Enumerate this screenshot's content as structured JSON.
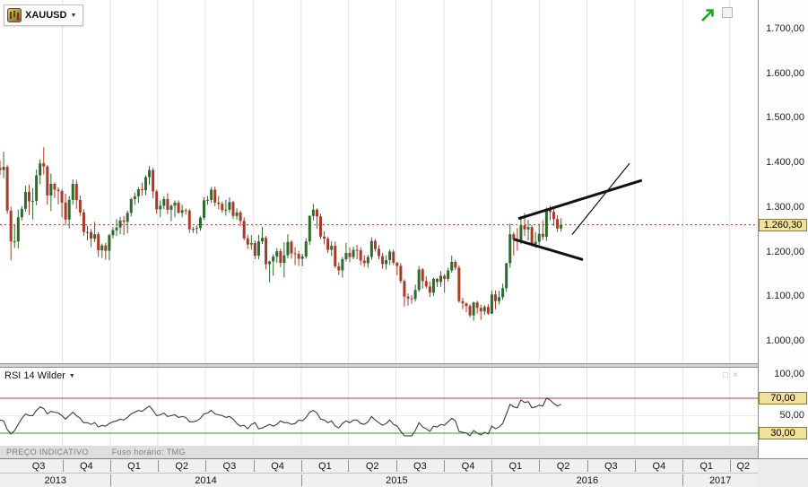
{
  "symbol": {
    "label": "XAUUSD",
    "caret": "▼"
  },
  "price_axis": {
    "labels": [
      {
        "text": "1.700,00",
        "value": 1700
      },
      {
        "text": "1.600,00",
        "value": 1600
      },
      {
        "text": "1.500,00",
        "value": 1500
      },
      {
        "text": "1.400,00",
        "value": 1400
      },
      {
        "text": "1.300,00",
        "value": 1300
      },
      {
        "text": "1.200,00",
        "value": 1200
      },
      {
        "text": "1.100,00",
        "value": 1100
      },
      {
        "text": "1.000,00",
        "value": 1000
      }
    ],
    "current": {
      "text": "1.260,30",
      "value": 1260.3
    }
  },
  "rsi_panel": {
    "title": "RSI 14 Wilder",
    "caret": "▼",
    "tools": [
      "□",
      "×"
    ],
    "axis_labels": [
      {
        "text": "100,00",
        "value": 100,
        "badge": false
      },
      {
        "text": "70,00",
        "value": 70,
        "badge": true
      },
      {
        "text": "50,00",
        "value": 50,
        "badge": false
      },
      {
        "text": "30,00",
        "value": 30,
        "badge": true
      }
    ]
  },
  "status_bar": {
    "left": "PREÇO INDICATIVO",
    "right": "Fuso horário: TMG"
  },
  "time_axis": {
    "quarter_ticks": [
      17.1,
      30.3,
      43.3,
      56.4,
      69.6,
      82.7,
      95.6,
      108.7,
      121.9,
      135,
      148,
      161.1,
      174.3,
      187.4,
      200.3
    ],
    "quarter_labels": [
      {
        "label": "Q3",
        "week": 10.6
      },
      {
        "label": "Q4",
        "week": 23.7
      },
      {
        "label": "Q1",
        "week": 36.8
      },
      {
        "label": "Q2",
        "week": 49.9
      },
      {
        "label": "Q3",
        "week": 63.0
      },
      {
        "label": "Q4",
        "week": 76.2
      },
      {
        "label": "Q1",
        "week": 89.2
      },
      {
        "label": "Q2",
        "week": 102.2
      },
      {
        "label": "Q3",
        "week": 115.3
      },
      {
        "label": "Q4",
        "week": 128.5
      },
      {
        "label": "Q1",
        "week": 141.5
      },
      {
        "label": "Q2",
        "week": 154.6
      },
      {
        "label": "Q3",
        "week": 167.7
      },
      {
        "label": "Q4",
        "week": 180.9
      },
      {
        "label": "Q1",
        "week": 193.9
      },
      {
        "label": "Q2",
        "week": 204.0
      }
    ],
    "year_ticks": [
      30.3,
      82.7,
      135,
      187.4
    ],
    "year_labels": [
      {
        "label": "2013",
        "week": 15.2
      },
      {
        "label": "2014",
        "week": 56.5
      },
      {
        "label": "2015",
        "week": 108.9
      },
      {
        "label": "2016",
        "week": 161.2
      },
      {
        "label": "2017",
        "week": 197.7
      }
    ]
  },
  "colors": {
    "bull": "#2d6a2d",
    "bear": "#aa3a28",
    "grid": "#e3e3e3",
    "price_line": "#cc3333",
    "rsi_line": "#3c3c3c",
    "overbought_line": "#cc3333",
    "oversold_line": "#2e9b2e",
    "rsi_mid_line": "#ececec",
    "badge_bg": "#f1e19c",
    "badge_border": "#8a7a35",
    "trendline": "#111111",
    "arrow_green": "#1fa41f"
  },
  "chart_data": {
    "type": "candlestick",
    "symbol": "XAUUSD",
    "timeframe": "weekly",
    "ohlc_format": [
      "open",
      "high",
      "low",
      "close"
    ],
    "price_axis_ticks": [
      1700,
      1600,
      1500,
      1400,
      1300,
      1200,
      1100,
      1000
    ],
    "current_price": 1260.3,
    "total_weeks": 208,
    "first_candle_week": 0,
    "candles": [
      [
        1388,
        1404,
        1372,
        1383
      ],
      [
        1383,
        1424,
        1365,
        1390
      ],
      [
        1390,
        1395,
        1285,
        1292
      ],
      [
        1292,
        1301,
        1180,
        1223
      ],
      [
        1223,
        1260,
        1208,
        1223
      ],
      [
        1223,
        1294,
        1207,
        1277
      ],
      [
        1277,
        1302,
        1270,
        1296
      ],
      [
        1296,
        1348,
        1290,
        1334
      ],
      [
        1334,
        1350,
        1282,
        1313
      ],
      [
        1313,
        1343,
        1272,
        1314
      ],
      [
        1314,
        1384,
        1304,
        1371
      ],
      [
        1371,
        1407,
        1351,
        1398
      ],
      [
        1398,
        1434,
        1373,
        1391
      ],
      [
        1391,
        1394,
        1305,
        1326
      ],
      [
        1326,
        1375,
        1291,
        1352
      ],
      [
        1352,
        1355,
        1320,
        1339
      ],
      [
        1339,
        1344,
        1306,
        1336
      ],
      [
        1336,
        1340,
        1277,
        1310
      ],
      [
        1310,
        1330,
        1259,
        1272
      ],
      [
        1272,
        1324,
        1252,
        1316
      ],
      [
        1316,
        1362,
        1305,
        1352
      ],
      [
        1352,
        1361,
        1296,
        1316
      ],
      [
        1316,
        1326,
        1280,
        1288
      ],
      [
        1288,
        1295,
        1236,
        1244
      ],
      [
        1244,
        1258,
        1225,
        1244
      ],
      [
        1244,
        1251,
        1210,
        1229
      ],
      [
        1229,
        1267,
        1221,
        1239
      ],
      [
        1239,
        1244,
        1188,
        1203
      ],
      [
        1203,
        1218,
        1186,
        1214
      ],
      [
        1214,
        1220,
        1182,
        1202
      ],
      [
        1202,
        1240,
        1181,
        1237
      ],
      [
        1237,
        1255,
        1230,
        1248
      ],
      [
        1248,
        1273,
        1235,
        1254
      ],
      [
        1254,
        1278,
        1239,
        1270
      ],
      [
        1270,
        1280,
        1237,
        1267
      ],
      [
        1267,
        1292,
        1241,
        1287
      ],
      [
        1287,
        1321,
        1279,
        1318
      ],
      [
        1318,
        1332,
        1305,
        1324
      ],
      [
        1324,
        1345,
        1309,
        1340
      ],
      [
        1340,
        1355,
        1326,
        1338
      ],
      [
        1338,
        1371,
        1327,
        1367
      ],
      [
        1367,
        1392,
        1350,
        1383
      ],
      [
        1383,
        1388,
        1320,
        1335
      ],
      [
        1335,
        1339,
        1285,
        1295
      ],
      [
        1295,
        1315,
        1277,
        1303
      ],
      [
        1303,
        1324,
        1295,
        1318
      ],
      [
        1318,
        1331,
        1284,
        1294
      ],
      [
        1294,
        1306,
        1268,
        1303
      ],
      [
        1303,
        1315,
        1277,
        1310
      ],
      [
        1310,
        1315,
        1285,
        1287
      ],
      [
        1287,
        1305,
        1277,
        1293
      ],
      [
        1293,
        1297,
        1283,
        1292
      ],
      [
        1292,
        1296,
        1242,
        1250
      ],
      [
        1250,
        1256,
        1242,
        1251
      ],
      [
        1251,
        1259,
        1240,
        1253
      ],
      [
        1253,
        1280,
        1247,
        1276
      ],
      [
        1276,
        1322,
        1271,
        1315
      ],
      [
        1315,
        1325,
        1305,
        1316
      ],
      [
        1316,
        1345,
        1309,
        1339
      ],
      [
        1339,
        1346,
        1302,
        1310
      ],
      [
        1310,
        1325,
        1295,
        1307
      ],
      [
        1307,
        1312,
        1287,
        1293
      ],
      [
        1293,
        1316,
        1281,
        1294
      ],
      [
        1294,
        1322,
        1287,
        1311
      ],
      [
        1311,
        1314,
        1273,
        1280
      ],
      [
        1280,
        1297,
        1272,
        1288
      ],
      [
        1288,
        1292,
        1257,
        1269
      ],
      [
        1269,
        1277,
        1225,
        1230
      ],
      [
        1230,
        1238,
        1206,
        1216
      ],
      [
        1216,
        1237,
        1204,
        1219
      ],
      [
        1219,
        1225,
        1183,
        1191
      ],
      [
        1191,
        1238,
        1183,
        1223
      ],
      [
        1223,
        1256,
        1217,
        1231
      ],
      [
        1231,
        1235,
        1160,
        1172
      ],
      [
        1172,
        1180,
        1131,
        1178
      ],
      [
        1178,
        1194,
        1146,
        1189
      ],
      [
        1189,
        1208,
        1175,
        1201
      ],
      [
        1201,
        1207,
        1165,
        1175
      ],
      [
        1175,
        1221,
        1142,
        1192
      ],
      [
        1192,
        1239,
        1185,
        1222
      ],
      [
        1222,
        1226,
        1184,
        1196
      ],
      [
        1196,
        1210,
        1170,
        1195
      ],
      [
        1195,
        1202,
        1168,
        1184
      ],
      [
        1184,
        1195,
        1167,
        1189
      ],
      [
        1189,
        1230,
        1184,
        1223
      ],
      [
        1223,
        1282,
        1215,
        1280
      ],
      [
        1280,
        1307,
        1270,
        1294
      ],
      [
        1294,
        1297,
        1251,
        1279
      ],
      [
        1279,
        1285,
        1228,
        1234
      ],
      [
        1234,
        1246,
        1216,
        1229
      ],
      [
        1229,
        1234,
        1197,
        1204
      ],
      [
        1204,
        1223,
        1190,
        1213
      ],
      [
        1213,
        1223,
        1163,
        1167
      ],
      [
        1167,
        1176,
        1147,
        1158
      ],
      [
        1158,
        1188,
        1142,
        1183
      ],
      [
        1183,
        1220,
        1178,
        1197
      ],
      [
        1197,
        1210,
        1176,
        1188
      ],
      [
        1188,
        1211,
        1183,
        1204
      ],
      [
        1204,
        1215,
        1183,
        1203
      ],
      [
        1203,
        1210,
        1170,
        1180
      ],
      [
        1180,
        1192,
        1166,
        1174
      ],
      [
        1174,
        1193,
        1164,
        1188
      ],
      [
        1188,
        1232,
        1182,
        1224
      ],
      [
        1224,
        1228,
        1200,
        1206
      ],
      [
        1206,
        1215,
        1183,
        1190
      ],
      [
        1190,
        1197,
        1162,
        1172
      ],
      [
        1172,
        1192,
        1160,
        1181
      ],
      [
        1181,
        1205,
        1170,
        1200
      ],
      [
        1200,
        1204,
        1170,
        1175
      ],
      [
        1175,
        1177,
        1147,
        1168
      ],
      [
        1168,
        1174,
        1129,
        1134
      ],
      [
        1134,
        1138,
        1077,
        1099
      ],
      [
        1099,
        1106,
        1079,
        1095
      ],
      [
        1095,
        1103,
        1083,
        1094
      ],
      [
        1094,
        1126,
        1088,
        1114
      ],
      [
        1114,
        1168,
        1110,
        1160
      ],
      [
        1160,
        1163,
        1117,
        1134
      ],
      [
        1134,
        1145,
        1117,
        1122
      ],
      [
        1122,
        1133,
        1098,
        1108
      ],
      [
        1108,
        1142,
        1100,
        1139
      ],
      [
        1139,
        1141,
        1121,
        1132
      ],
      [
        1132,
        1156,
        1121,
        1146
      ],
      [
        1146,
        1150,
        1108,
        1139
      ],
      [
        1139,
        1164,
        1133,
        1158
      ],
      [
        1158,
        1191,
        1153,
        1177
      ],
      [
        1177,
        1182,
        1159,
        1164
      ],
      [
        1164,
        1169,
        1085,
        1089
      ],
      [
        1089,
        1097,
        1071,
        1084
      ],
      [
        1084,
        1086,
        1064,
        1078
      ],
      [
        1078,
        1082,
        1052,
        1057
      ],
      [
        1057,
        1088,
        1045,
        1086
      ],
      [
        1086,
        1090,
        1061,
        1074
      ],
      [
        1074,
        1081,
        1047,
        1066
      ],
      [
        1066,
        1080,
        1058,
        1076
      ],
      [
        1076,
        1082,
        1058,
        1061
      ],
      [
        1061,
        1113,
        1060,
        1104
      ],
      [
        1104,
        1113,
        1071,
        1089
      ],
      [
        1089,
        1112,
        1082,
        1098
      ],
      [
        1098,
        1128,
        1092,
        1118
      ],
      [
        1118,
        1175,
        1110,
        1174
      ],
      [
        1174,
        1263,
        1164,
        1239
      ],
      [
        1239,
        1244,
        1191,
        1227
      ],
      [
        1227,
        1253,
        1202,
        1223
      ],
      [
        1223,
        1280,
        1217,
        1259
      ],
      [
        1259,
        1287,
        1235,
        1250
      ],
      [
        1250,
        1271,
        1225,
        1255
      ],
      [
        1255,
        1260,
        1212,
        1217
      ],
      [
        1217,
        1244,
        1208,
        1222
      ],
      [
        1222,
        1262,
        1215,
        1240
      ],
      [
        1240,
        1270,
        1226,
        1233
      ],
      [
        1233,
        1299,
        1224,
        1293
      ],
      [
        1293,
        1303,
        1270,
        1289
      ],
      [
        1289,
        1297,
        1258,
        1273
      ],
      [
        1273,
        1282,
        1244,
        1252
      ],
      [
        1252,
        1275,
        1245,
        1260.3
      ]
    ],
    "rsi": {
      "name": "RSI 14 Wilder",
      "period": 14,
      "overbought": 70,
      "oversold": 30,
      "values": [
        45,
        44,
        34,
        29,
        33,
        40,
        47,
        52,
        50,
        50,
        56,
        60,
        58,
        52,
        55,
        54,
        53,
        50,
        46,
        50,
        54,
        50,
        47,
        42,
        42,
        40,
        42,
        37,
        39,
        38,
        41,
        43,
        44,
        46,
        45,
        48,
        52,
        54,
        56,
        55,
        58,
        61,
        56,
        50,
        51,
        53,
        49,
        50,
        51,
        48,
        49,
        48,
        43,
        43,
        44,
        47,
        52,
        53,
        56,
        52,
        51,
        50,
        48,
        49,
        46,
        41,
        38,
        39,
        35,
        40,
        42,
        35,
        36,
        38,
        40,
        38,
        40,
        44,
        42,
        42,
        40,
        41,
        45,
        44,
        48,
        54,
        56,
        53,
        46,
        45,
        42,
        44,
        38,
        36,
        41,
        44,
        42,
        45,
        45,
        41,
        40,
        43,
        49,
        45,
        42,
        39,
        41,
        45,
        40,
        38,
        32,
        27,
        27,
        27,
        33,
        42,
        37,
        35,
        32,
        38,
        37,
        40,
        39,
        43,
        47,
        44,
        32,
        31,
        30,
        27,
        33,
        30,
        28,
        31,
        29,
        38,
        35,
        37,
        41,
        52,
        63,
        60,
        59,
        68,
        65,
        66,
        59,
        60,
        62,
        61,
        70,
        68,
        64,
        61,
        63
      ]
    },
    "trendlines": [
      {
        "from": [
          142.3,
          1274
        ],
        "to": [
          176.2,
          1360
        ],
        "width": 3
      },
      {
        "from": [
          141.0,
          1228
        ],
        "to": [
          160.0,
          1182
        ],
        "width": 3
      },
      {
        "from": [
          157.0,
          1238
        ],
        "to": [
          172.8,
          1398
        ],
        "width": 1.2
      }
    ]
  }
}
